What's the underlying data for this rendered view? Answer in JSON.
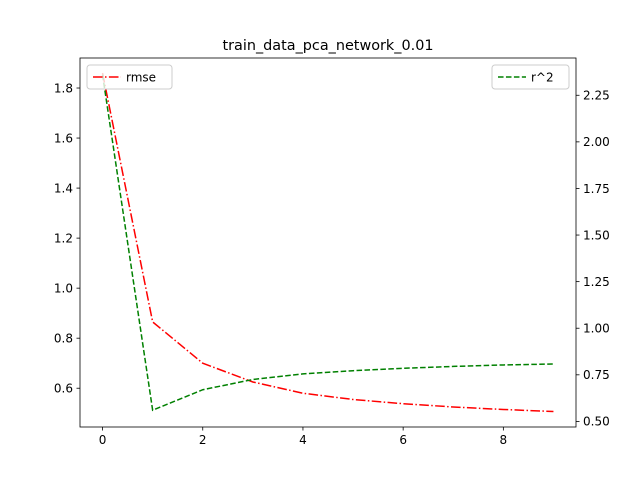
{
  "chart_data": {
    "type": "line",
    "title": "train_data_pca_network_0.01",
    "xlabel": "",
    "ylabel": "",
    "x": [
      0,
      1,
      2,
      3,
      4,
      5,
      6,
      7,
      8,
      9
    ],
    "xlim": [
      -0.45,
      9.45
    ],
    "xticks": [
      0,
      2,
      4,
      6,
      8
    ],
    "xtick_labels": [
      "0",
      "2",
      "4",
      "6",
      "8"
    ],
    "grid": false,
    "series": [
      {
        "name": "rmse",
        "axis": "left",
        "color": "#ff0000",
        "linestyle": "dashdot",
        "values": [
          1.86,
          0.865,
          0.7,
          0.625,
          0.58,
          0.555,
          0.538,
          0.525,
          0.515,
          0.507
        ]
      },
      {
        "name": "r^2",
        "axis": "right",
        "color": "#008000",
        "linestyle": "dashed",
        "values": [
          2.36,
          0.56,
          0.67,
          0.725,
          0.755,
          0.772,
          0.785,
          0.795,
          0.803,
          0.808
        ]
      }
    ],
    "y_left": {
      "ylim": [
        0.445,
        1.92
      ],
      "ticks": [
        0.6,
        0.8,
        1.0,
        1.2,
        1.4,
        1.6,
        1.8
      ],
      "tick_labels": [
        "0.6",
        "0.8",
        "1.0",
        "1.2",
        "1.4",
        "1.6",
        "1.8"
      ]
    },
    "y_right": {
      "ylim": [
        0.47,
        2.45
      ],
      "ticks": [
        0.5,
        0.75,
        1.0,
        1.25,
        1.5,
        1.75,
        2.0,
        2.25
      ],
      "tick_labels": [
        "0.50",
        "0.75",
        "1.00",
        "1.25",
        "1.50",
        "1.75",
        "2.00",
        "2.25"
      ]
    },
    "legends": [
      {
        "series": "rmse",
        "placement": "upper left"
      },
      {
        "series": "r^2",
        "placement": "upper right"
      }
    ]
  }
}
